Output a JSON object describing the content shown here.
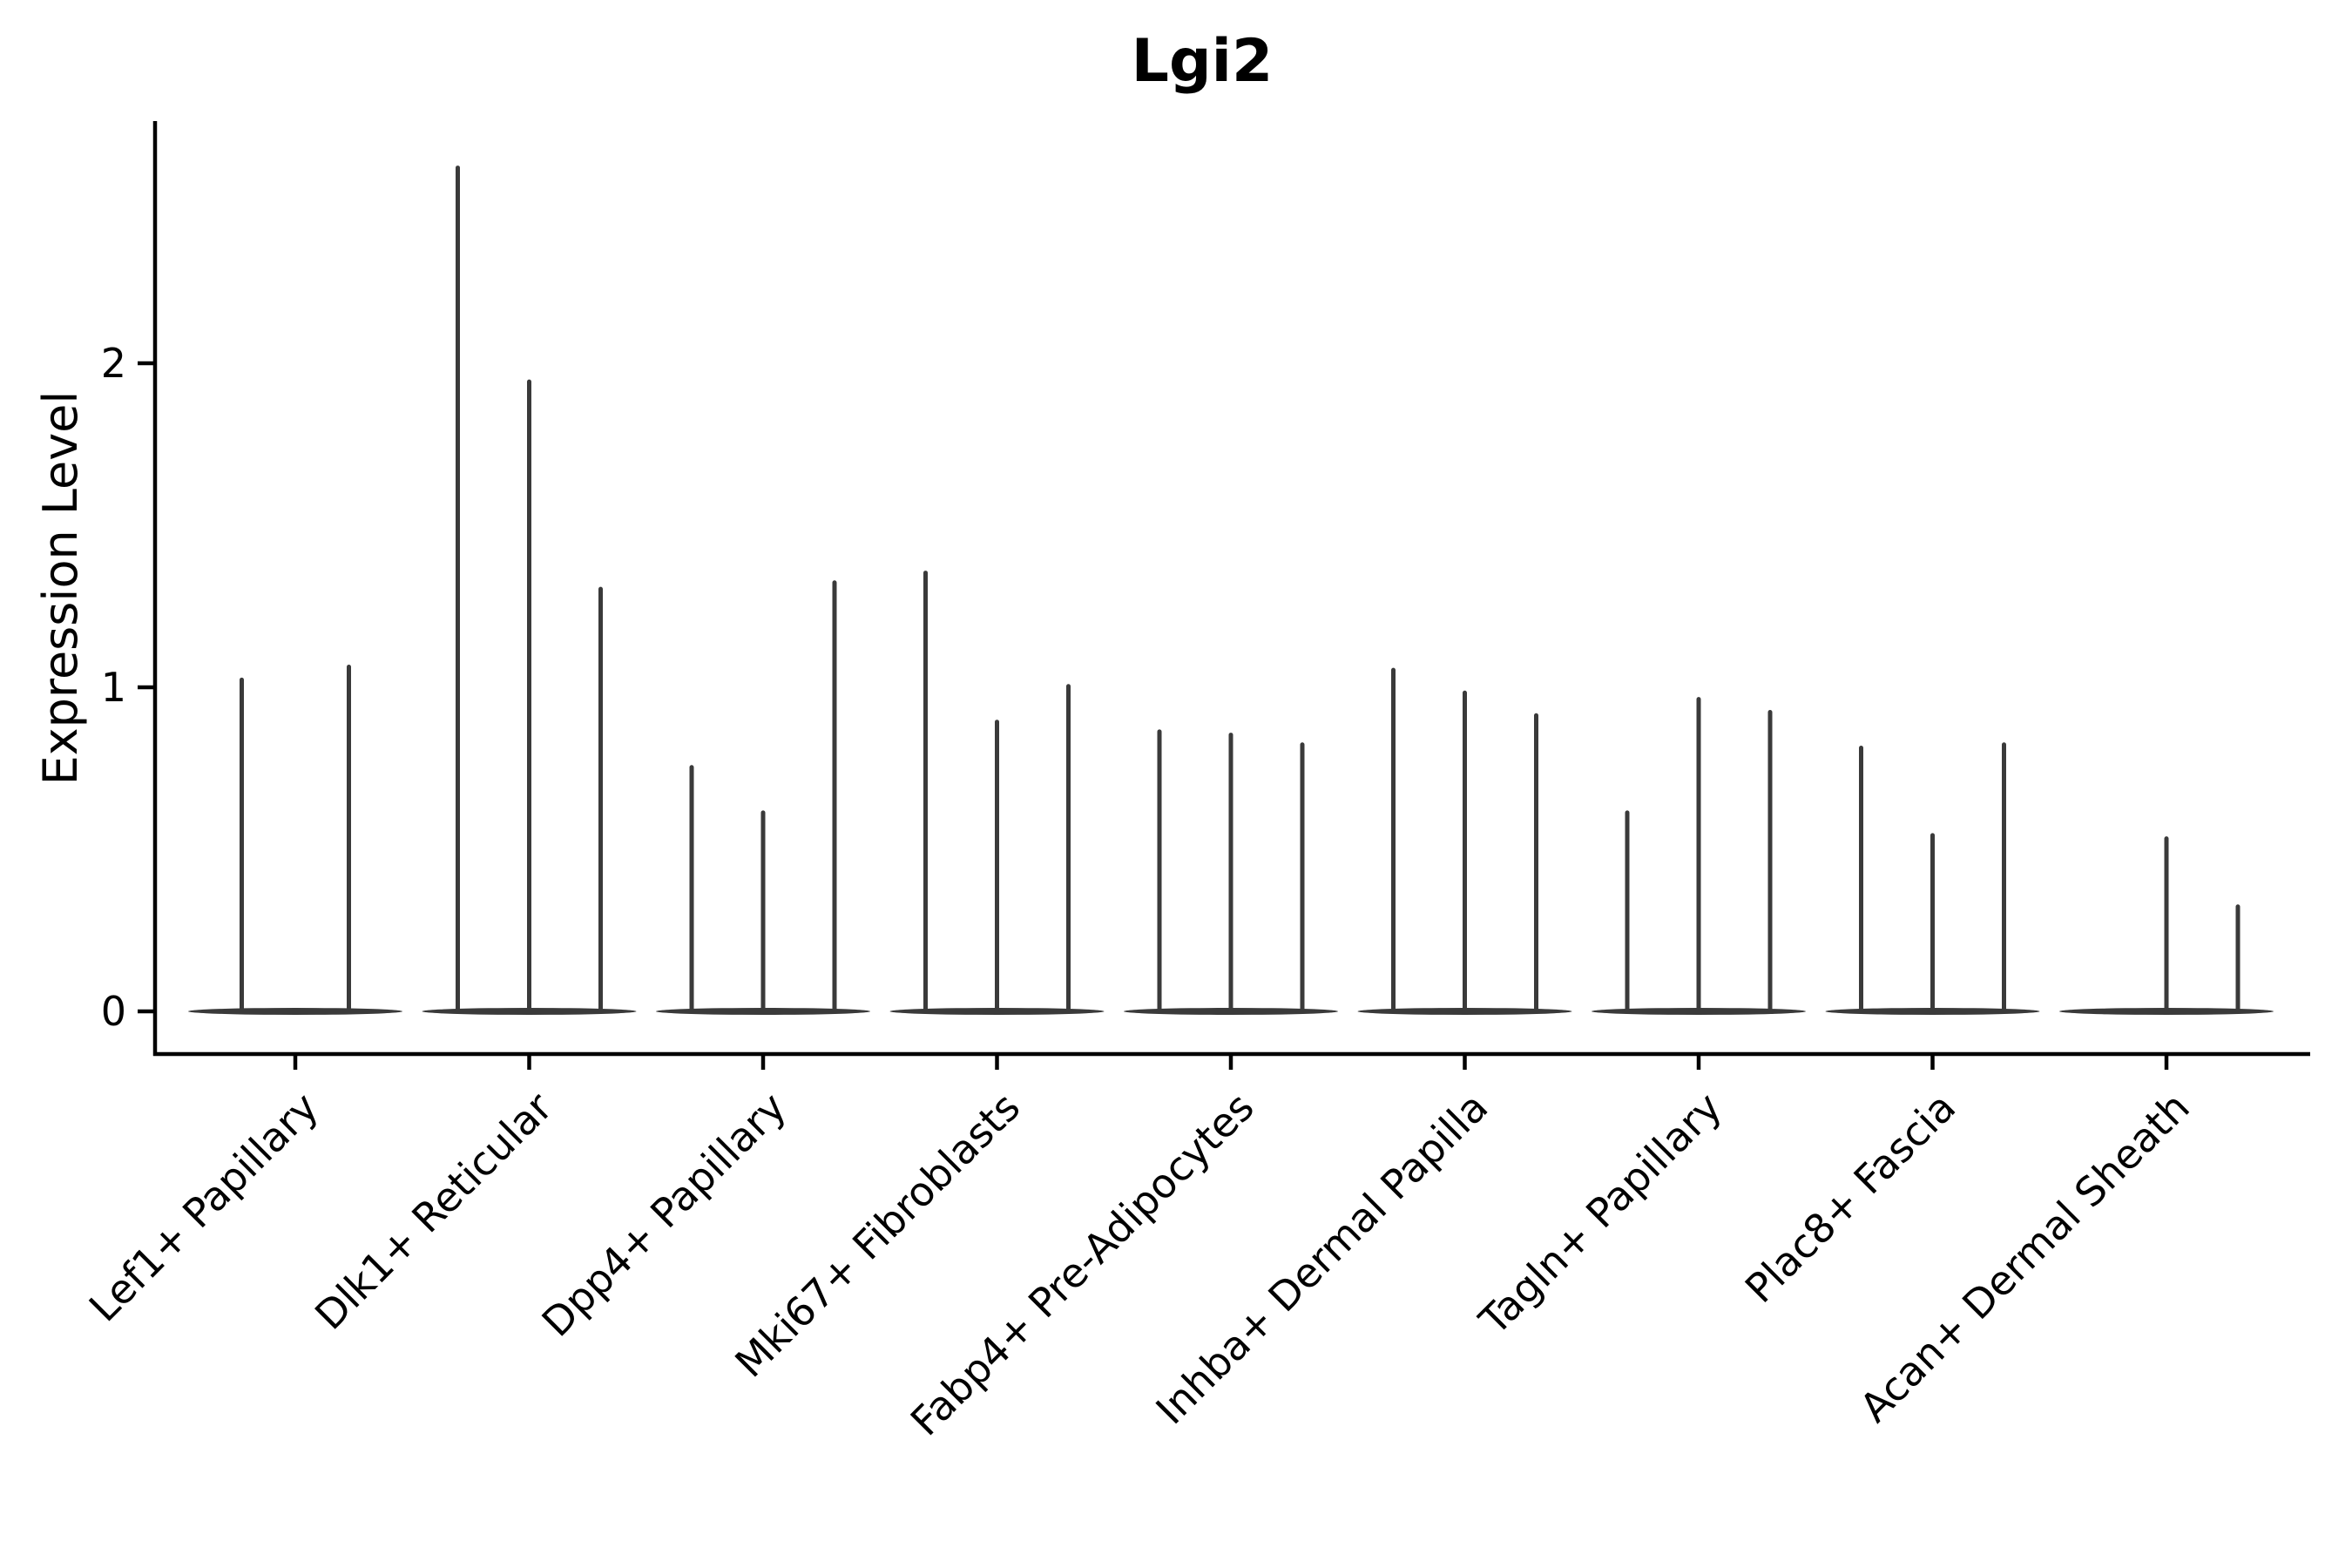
{
  "title": "Lgi2",
  "y_axis": {
    "label": "Expression Level",
    "tick_labels": [
      "0",
      "1",
      "2"
    ]
  },
  "chart_data": {
    "type": "violin",
    "title": "Lgi2",
    "xlabel": "",
    "ylabel": "Expression Level",
    "ylim": [
      0,
      2.75
    ],
    "yticks": [
      0,
      1,
      2
    ],
    "grid": false,
    "legend": "none",
    "x_tick_rotation_deg": 45,
    "categories": [
      "Lef1+ Papillary",
      "Dlk1+ Reticular",
      "Dpp4+ Papillary",
      "Mki67+ Fibroblasts",
      "Fabp4+ Pre-Adipocytes",
      "Inhba+ Dermal Papilla",
      "Tagln+ Papillary",
      "Plac8+ Fascia",
      "Acan+ Dermal Sheath"
    ],
    "violins": [
      {
        "category": "Lef1+ Papillary",
        "max_values": [
          1.03,
          1.07
        ]
      },
      {
        "category": "Dlk1+ Reticular",
        "max_values": [
          2.61,
          1.95,
          1.31
        ]
      },
      {
        "category": "Dpp4+ Papillary",
        "max_values": [
          0.76,
          0.62,
          1.33
        ]
      },
      {
        "category": "Mki67+ Fibroblasts",
        "max_values": [
          1.36,
          0.9,
          1.01
        ]
      },
      {
        "category": "Fabp4+ Pre-Adipocytes",
        "max_values": [
          0.87,
          0.86,
          0.83
        ]
      },
      {
        "category": "Inhba+ Dermal Papilla",
        "max_values": [
          1.06,
          0.99,
          0.92
        ]
      },
      {
        "category": "Tagln+ Papillary",
        "max_values": [
          0.62,
          0.97,
          0.93
        ]
      },
      {
        "category": "Plac8+ Fascia",
        "max_values": [
          0.82,
          0.55,
          0.83
        ]
      },
      {
        "category": "Acan+ Dermal Sheath",
        "max_values": [
          0.0,
          0.54,
          0.33
        ]
      }
    ],
    "colors": {
      "violin": "#3a3a3a",
      "axis": "#000000",
      "text": "#000000",
      "background": "#ffffff"
    }
  }
}
